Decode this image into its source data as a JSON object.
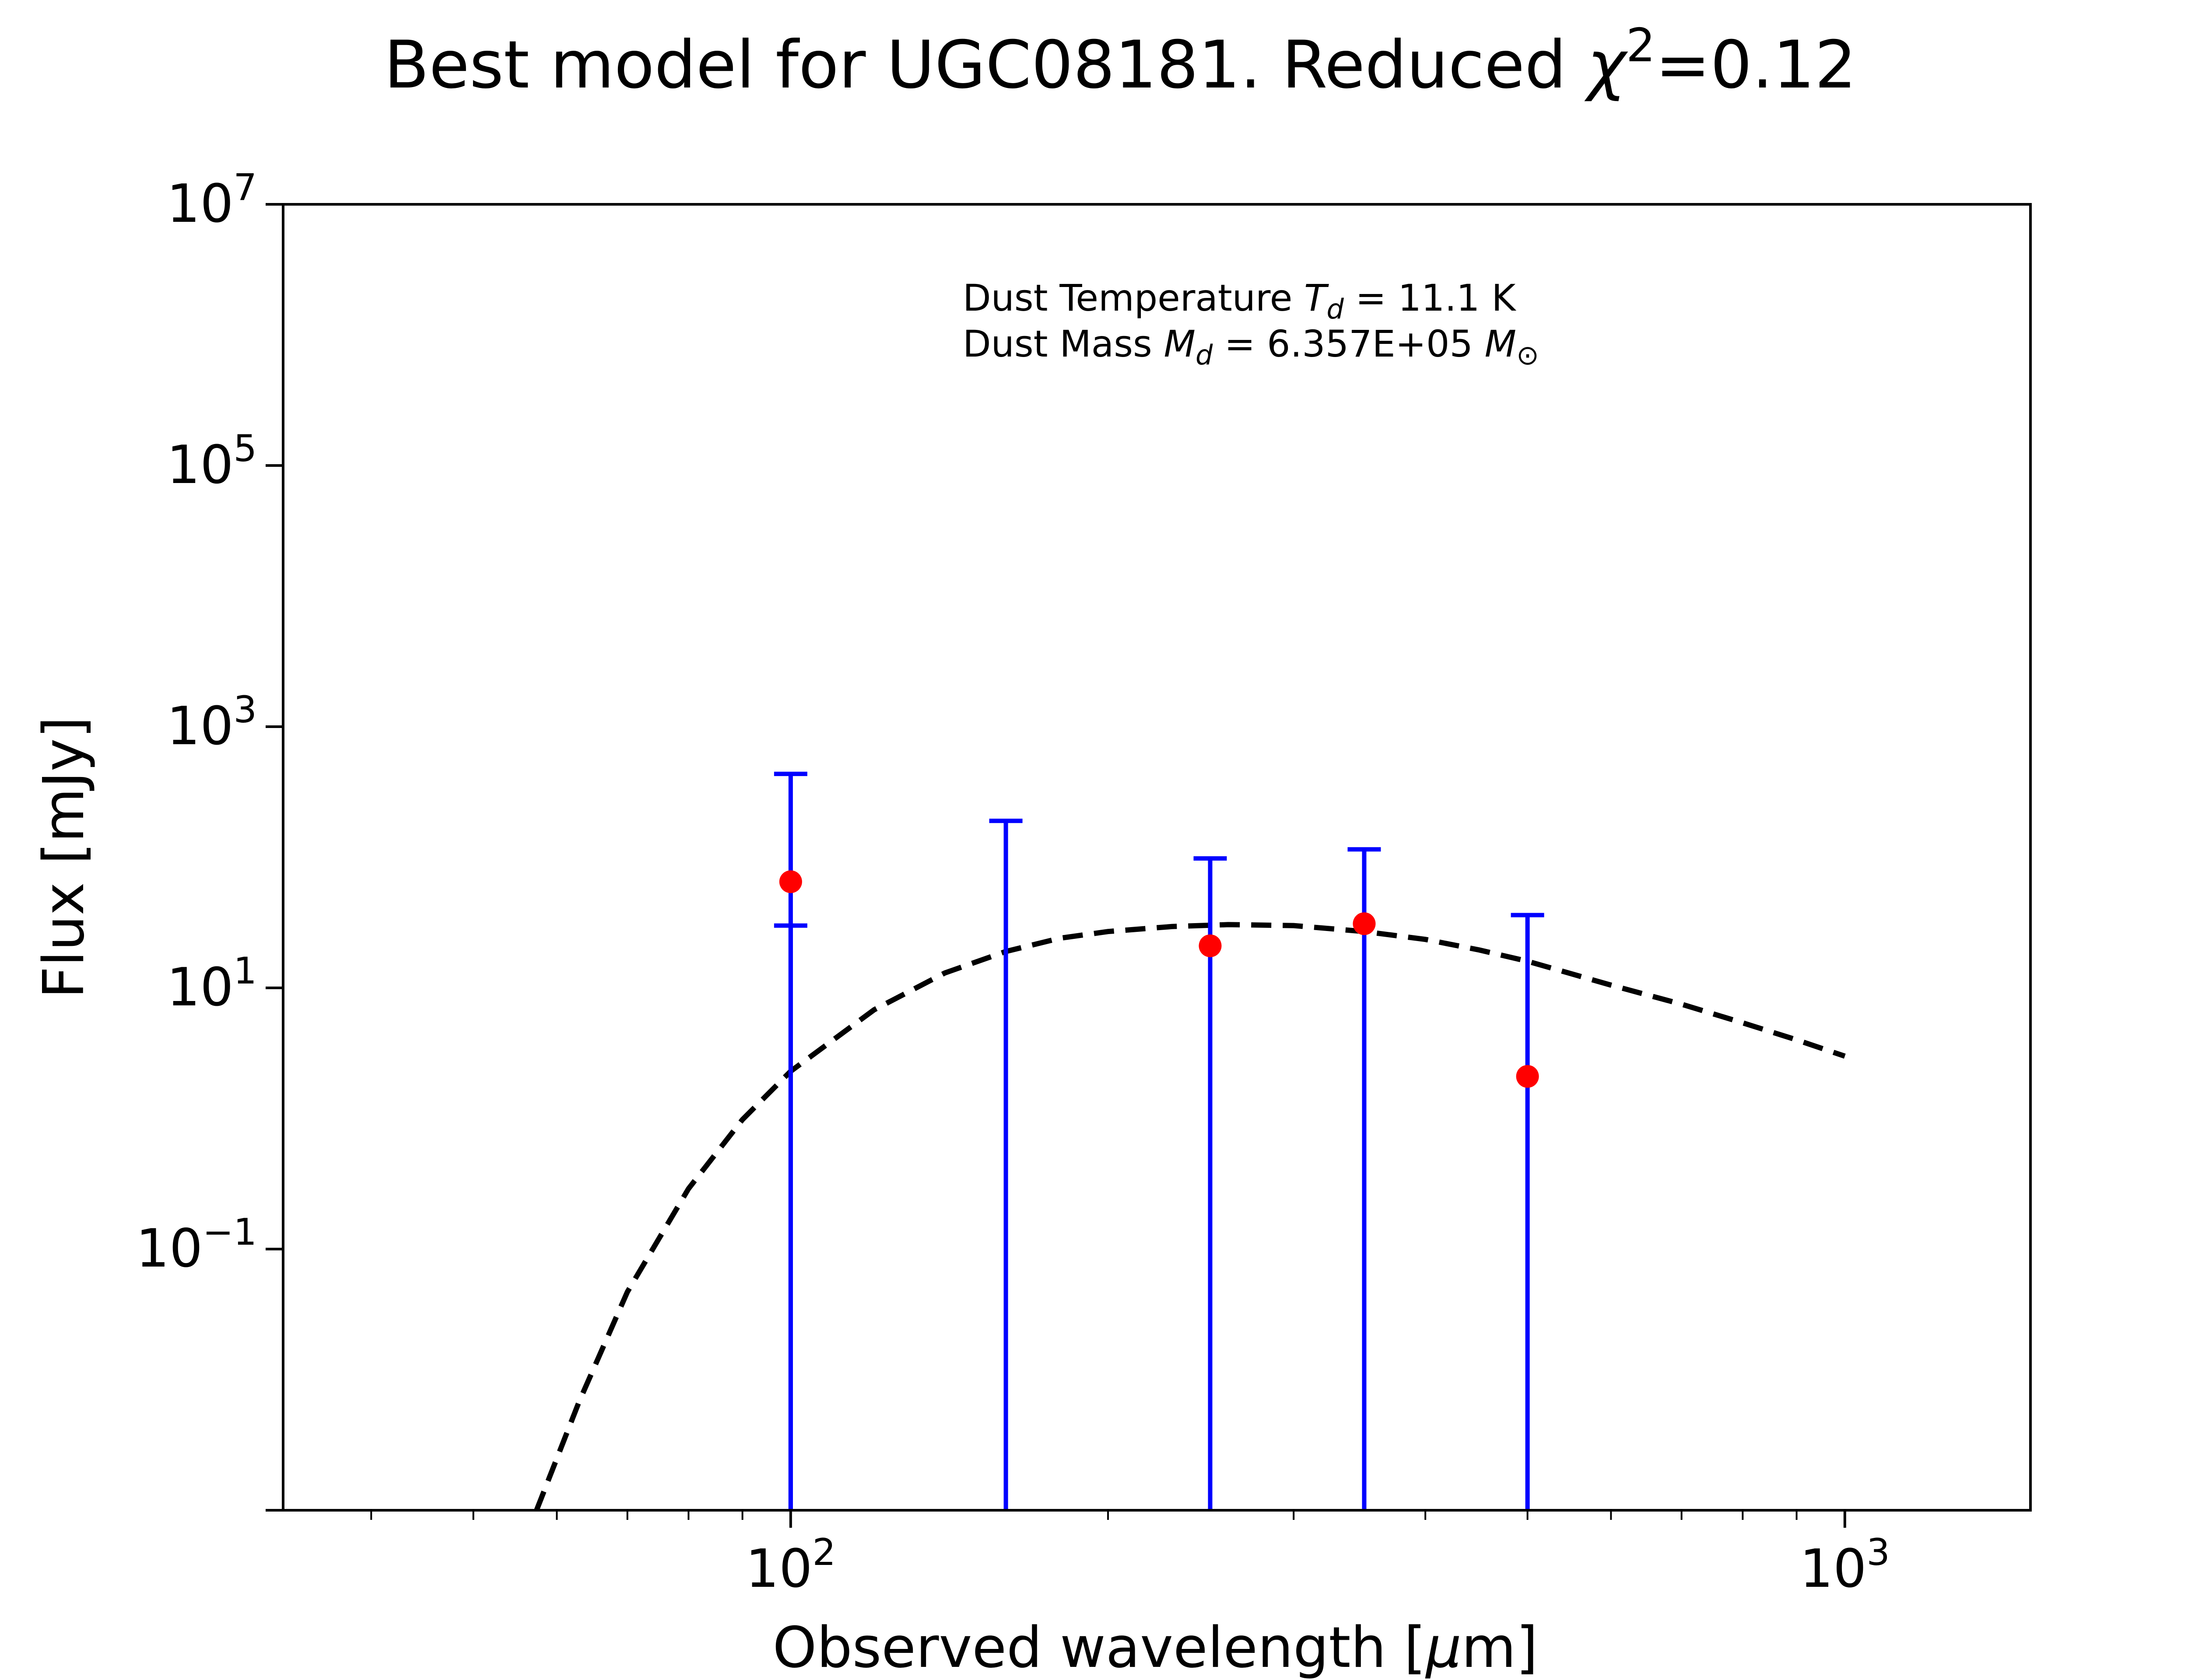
{
  "chart_data": {
    "type": "scatter",
    "title": {
      "prefix": "Best model for UGC08181. Reduced ",
      "chi": "χ",
      "sup": "2",
      "suffix": "=0.12"
    },
    "xlabel": {
      "prefix": "Observed wavelength [",
      "mu": "μ",
      "suffix": "m]"
    },
    "ylabel": "Flux [mJy]",
    "xscale": "log",
    "yscale": "log",
    "xlim": [
      33,
      1500
    ],
    "ylim": [
      0.001,
      10000000
    ],
    "x_ticks": [
      {
        "value": 100,
        "base": "10",
        "exp": "2"
      },
      {
        "value": 1000,
        "base": "10",
        "exp": "3"
      }
    ],
    "y_ticks": [
      {
        "value": 0.1,
        "base": "10",
        "exp": "−1"
      },
      {
        "value": 10,
        "base": "10",
        "exp": "1"
      },
      {
        "value": 1000,
        "base": "10",
        "exp": "3"
      },
      {
        "value": 100000,
        "base": "10",
        "exp": "5"
      },
      {
        "value": 10000000,
        "base": "10",
        "exp": "7"
      }
    ],
    "annotation": {
      "line1": {
        "prefix": "Dust Temperature ",
        "sym": "T",
        "sub": "d",
        "suffix": " = 11.1 K"
      },
      "line2": {
        "prefix": "Dust Mass ",
        "sym": "M",
        "sub": "d",
        "value": " = 6.357E+05 ",
        "unit_sym": "M",
        "unit_sub": "⊙"
      }
    },
    "colors": {
      "points": "#ff0000",
      "errorbars": "#0000ff",
      "model": "#000000"
    },
    "series": [
      {
        "kind": "observed",
        "points": [
          {
            "x": 100,
            "y": 65,
            "yerr_low": 0.001,
            "yerr_high": 370
          },
          {
            "x": 250,
            "y": 21,
            "yerr_low": 0.001,
            "yerr_high": 77
          },
          {
            "x": 350,
            "y": 31,
            "yerr_low": 0.001,
            "yerr_high": 84
          },
          {
            "x": 500,
            "y": 2.1,
            "yerr_low": 0.001,
            "yerr_high": 34
          }
        ]
      },
      {
        "kind": "upper_limit",
        "points": [
          {
            "x": 100,
            "y_high": 30
          },
          {
            "x": 160,
            "y_high": 190
          }
        ]
      },
      {
        "kind": "model",
        "style": "dashed",
        "x": [
          57.4,
          63,
          70,
          80,
          90,
          100,
          120,
          140,
          160,
          180,
          200,
          230,
          260,
          300,
          350,
          400,
          450,
          500,
          600,
          700,
          800,
          900,
          1000
        ],
        "y": [
          0.00098,
          0.0068,
          0.047,
          0.29,
          0.98,
          2.3,
          6.8,
          13,
          19,
          24,
          27,
          29.5,
          30.5,
          30,
          27,
          23.5,
          19.5,
          16,
          10.5,
          7.5,
          5.4,
          4.0,
          3.0
        ]
      }
    ]
  }
}
